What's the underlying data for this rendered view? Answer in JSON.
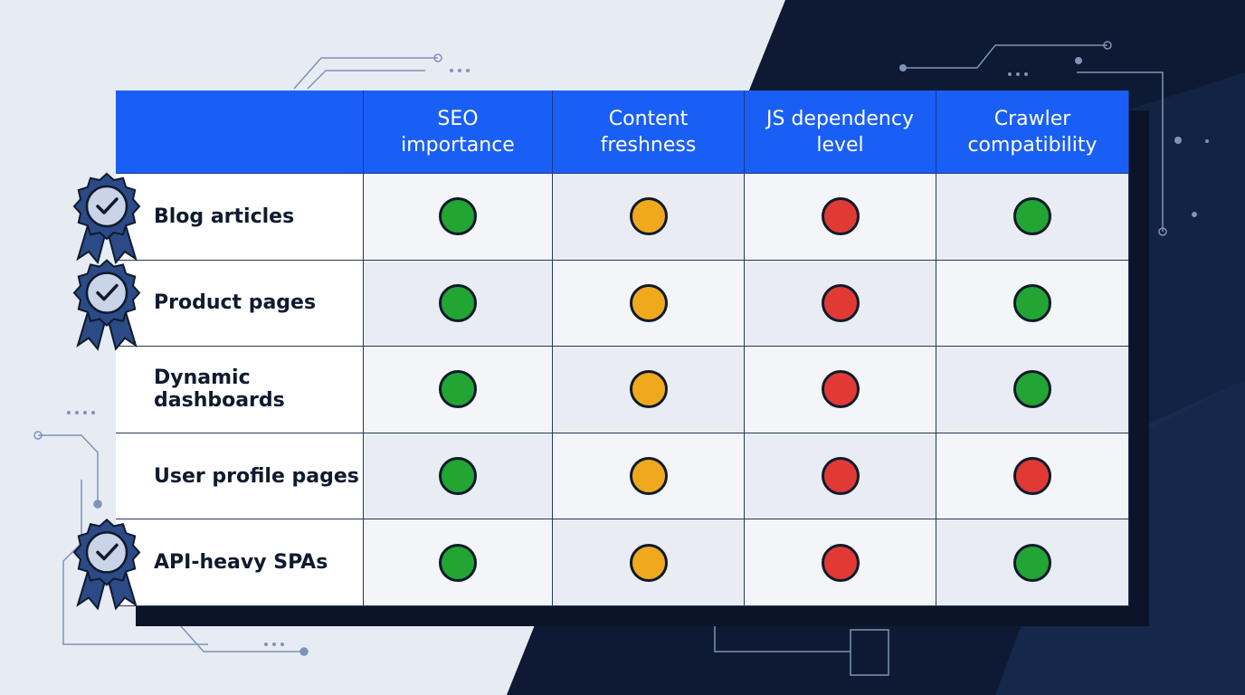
{
  "table": {
    "columns": [
      "SEO\nimportance",
      "Content\nfreshness",
      "JS dependency\nlevel",
      "Crawler\ncompatibility"
    ],
    "rows": [
      {
        "label": "Blog articles",
        "badge": true,
        "cells": [
          "#22a532",
          "#f0a91c",
          "#e13a35",
          "#22a532"
        ]
      },
      {
        "label": "Product pages",
        "badge": true,
        "cells": [
          "#22a532",
          "#f0a91c",
          "#e13a35",
          "#22a532"
        ]
      },
      {
        "label": "Dynamic dashboards",
        "badge": false,
        "cells": [
          "#22a532",
          "#f0a91c",
          "#e13a35",
          "#22a532"
        ]
      },
      {
        "label": "User profile pages",
        "badge": false,
        "cells": [
          "#22a532",
          "#f0a91c",
          "#e13a35",
          "#e13a35"
        ]
      },
      {
        "label": "API-heavy SPAs",
        "badge": true,
        "cells": [
          "#22a532",
          "#f0a91c",
          "#e13a35",
          "#22a532"
        ]
      }
    ],
    "header_color": "#1a5ff5"
  }
}
